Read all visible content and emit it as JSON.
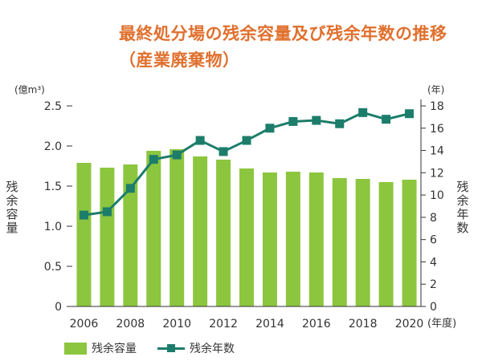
{
  "title": "最終処分場の残余容量及び残余年数の推移（産業廃棄物）",
  "colors": {
    "bar": "#8cc63f",
    "line": "#1c7d6b",
    "title": "#e0702e",
    "axis": "#333333"
  },
  "chart_data": {
    "type": "bar",
    "categories": [
      "2006",
      "2007",
      "2008",
      "2009",
      "2010",
      "2011",
      "2012",
      "2013",
      "2014",
      "2015",
      "2016",
      "2017",
      "2018",
      "2019",
      "2020"
    ],
    "x_tick_labels": [
      "2006",
      "2008",
      "2010",
      "2012",
      "2014",
      "2016",
      "2018",
      "2020"
    ],
    "x_unit": "(年度)",
    "series": [
      {
        "name": "残余容量",
        "type": "bar",
        "axis": "left",
        "values": [
          1.79,
          1.73,
          1.77,
          1.94,
          1.96,
          1.87,
          1.83,
          1.72,
          1.67,
          1.68,
          1.67,
          1.6,
          1.59,
          1.55,
          1.58
        ]
      },
      {
        "name": "残余年数",
        "type": "line",
        "axis": "right",
        "values": [
          8.2,
          8.5,
          10.6,
          13.2,
          13.6,
          14.9,
          13.9,
          14.9,
          16.0,
          16.6,
          16.7,
          16.4,
          17.4,
          16.8,
          17.3
        ]
      }
    ],
    "y_left": {
      "label": "残余容量",
      "unit": "(億m³)",
      "ylim": [
        0,
        2.5
      ],
      "ticks": [
        "0",
        "0.5",
        "1.0",
        "1.5",
        "2.0",
        "2.5"
      ]
    },
    "y_right": {
      "label": "残余年数",
      "unit": "(年)",
      "ylim": [
        0,
        18
      ],
      "ticks": [
        "0",
        "2",
        "4",
        "6",
        "8",
        "10",
        "12",
        "14",
        "16",
        "18"
      ]
    },
    "grid": false,
    "legend_position": "bottom-left"
  }
}
